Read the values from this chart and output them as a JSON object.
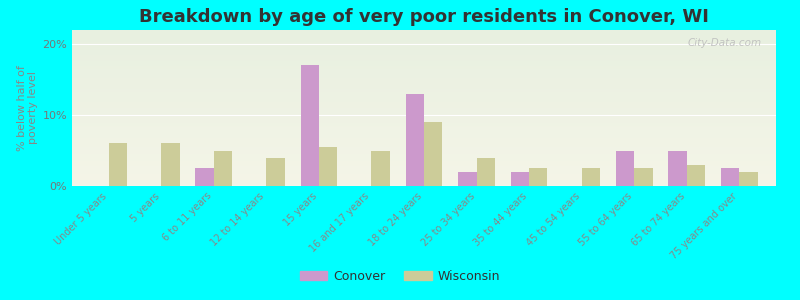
{
  "title": "Breakdown by age of very poor residents in Conover, WI",
  "ylabel": "% below half of\npoverty level",
  "categories": [
    "Under 5 years",
    "5 years",
    "6 to 11 years",
    "12 to 14 years",
    "15 years",
    "16 and 17 years",
    "18 to 24 years",
    "25 to 34 years",
    "35 to 44 years",
    "45 to 54 years",
    "55 to 64 years",
    "65 to 74 years",
    "75 years and over"
  ],
  "conover": [
    0,
    0,
    2.5,
    0,
    17.0,
    0,
    13.0,
    2.0,
    2.0,
    0,
    5.0,
    5.0,
    2.5
  ],
  "wisconsin": [
    6.0,
    6.0,
    5.0,
    4.0,
    5.5,
    5.0,
    9.0,
    4.0,
    2.5,
    2.5,
    2.5,
    3.0,
    2.0
  ],
  "conover_color": "#cc99cc",
  "wisconsin_color": "#cccc99",
  "background_color": "#00ffff",
  "plot_bg_top": "#f5f5e8",
  "plot_bg_bottom": "#e8f0e0",
  "ylim": [
    0,
    22
  ],
  "yticks": [
    0,
    10,
    20
  ],
  "ytick_labels": [
    "0%",
    "10%",
    "20%"
  ],
  "title_fontsize": 13,
  "ylabel_fontsize": 8,
  "tick_label_fontsize": 7,
  "legend_fontsize": 9,
  "watermark": "City-Data.com"
}
